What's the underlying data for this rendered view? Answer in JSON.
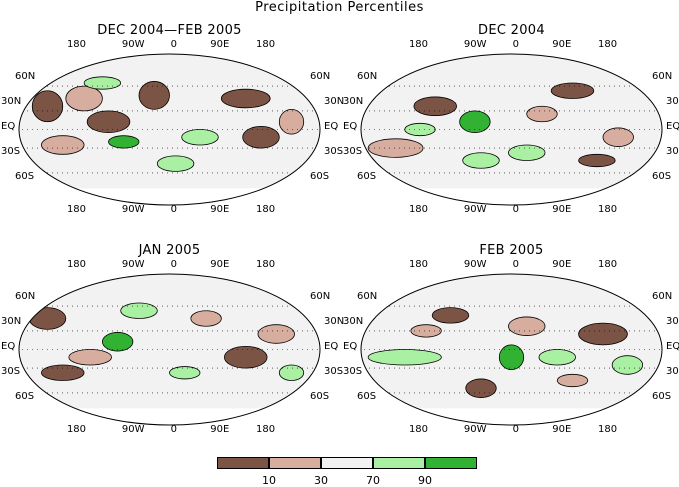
{
  "title": "Precipitation Percentiles",
  "panels": [
    {
      "title": "DEC 2004—FEB 2005"
    },
    {
      "title": "DEC 2004"
    },
    {
      "title": "JAN 2005"
    },
    {
      "title": "FEB 2005"
    }
  ],
  "lon_labels": [
    "180",
    "90W",
    "0",
    "90E",
    "180"
  ],
  "lat_labels": [
    "60N",
    "30N",
    "EQ",
    "30S",
    "60S"
  ],
  "legend": {
    "colors": [
      "#7c5446",
      "#d6ad9f",
      "#f2f2f2",
      "#a9f0a2",
      "#32b232"
    ],
    "ticks": [
      "10",
      "30",
      "70",
      "90"
    ]
  },
  "colors": {
    "outline": "#000000",
    "neutral": "#f2f2f2"
  }
}
